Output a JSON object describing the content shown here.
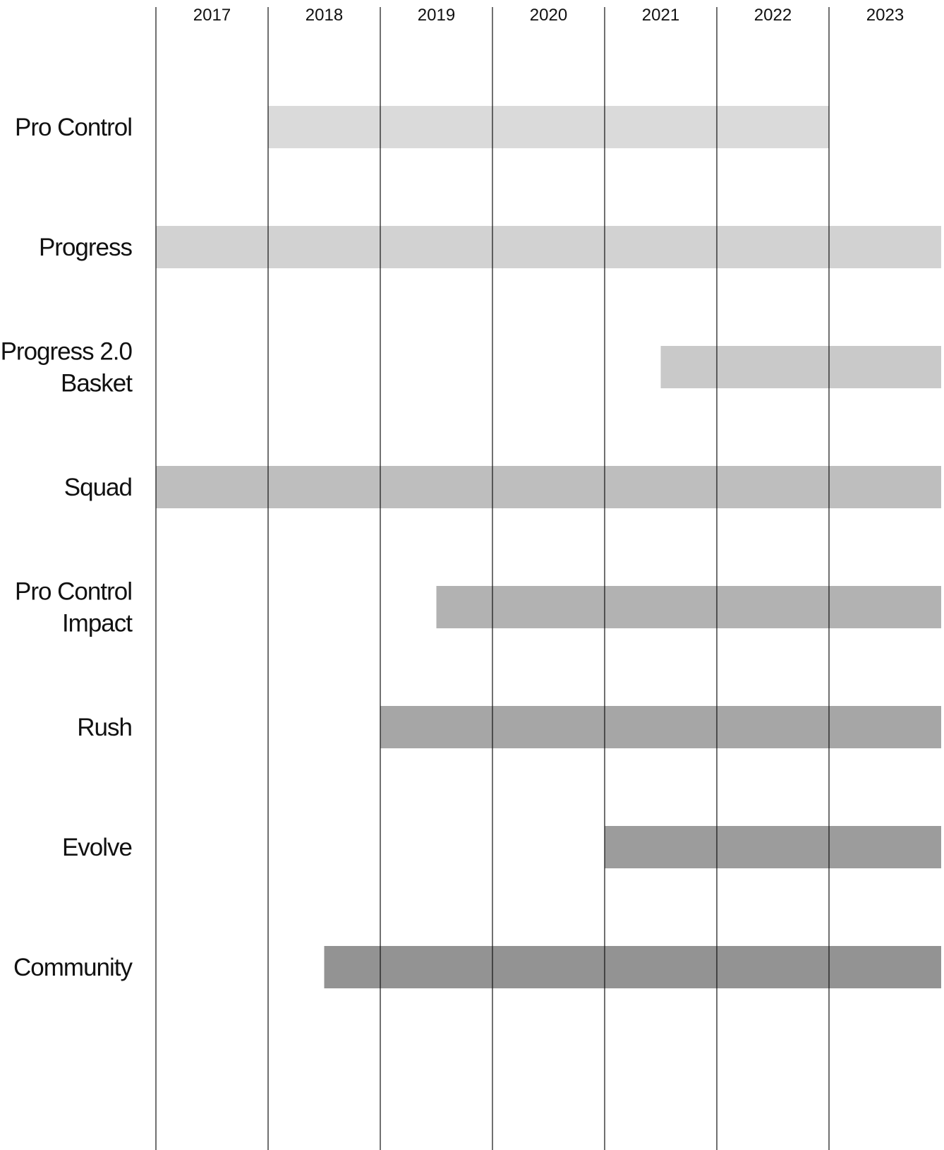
{
  "chart_data": {
    "type": "bar",
    "orientation": "horizontal-timeline",
    "years": [
      "2017",
      "2018",
      "2019",
      "2020",
      "2021",
      "2022",
      "2023"
    ],
    "xlim": [
      2017,
      2024
    ],
    "grid": true,
    "series": [
      {
        "label_lines": [
          "Pro Control"
        ],
        "start": 2018.0,
        "end": 2023.0,
        "color": "#dadada"
      },
      {
        "label_lines": [
          "Progress"
        ],
        "start": 2017.0,
        "end": 2024.0,
        "color": "#d2d2d2"
      },
      {
        "label_lines": [
          "Progress 2.0",
          "Basket"
        ],
        "start": 2021.5,
        "end": 2024.0,
        "color": "#c9c9c9"
      },
      {
        "label_lines": [
          "Squad"
        ],
        "start": 2017.0,
        "end": 2024.0,
        "color": "#bebebe"
      },
      {
        "label_lines": [
          "Pro Control",
          "Impact"
        ],
        "start": 2019.5,
        "end": 2024.0,
        "color": "#b2b2b2"
      },
      {
        "label_lines": [
          "Rush"
        ],
        "start": 2019.0,
        "end": 2024.0,
        "color": "#a6a6a6"
      },
      {
        "label_lines": [
          "Evolve"
        ],
        "start": 2021.0,
        "end": 2024.0,
        "color": "#9c9c9c"
      },
      {
        "label_lines": [
          "Community"
        ],
        "start": 2018.5,
        "end": 2024.0,
        "color": "#939393"
      }
    ]
  }
}
